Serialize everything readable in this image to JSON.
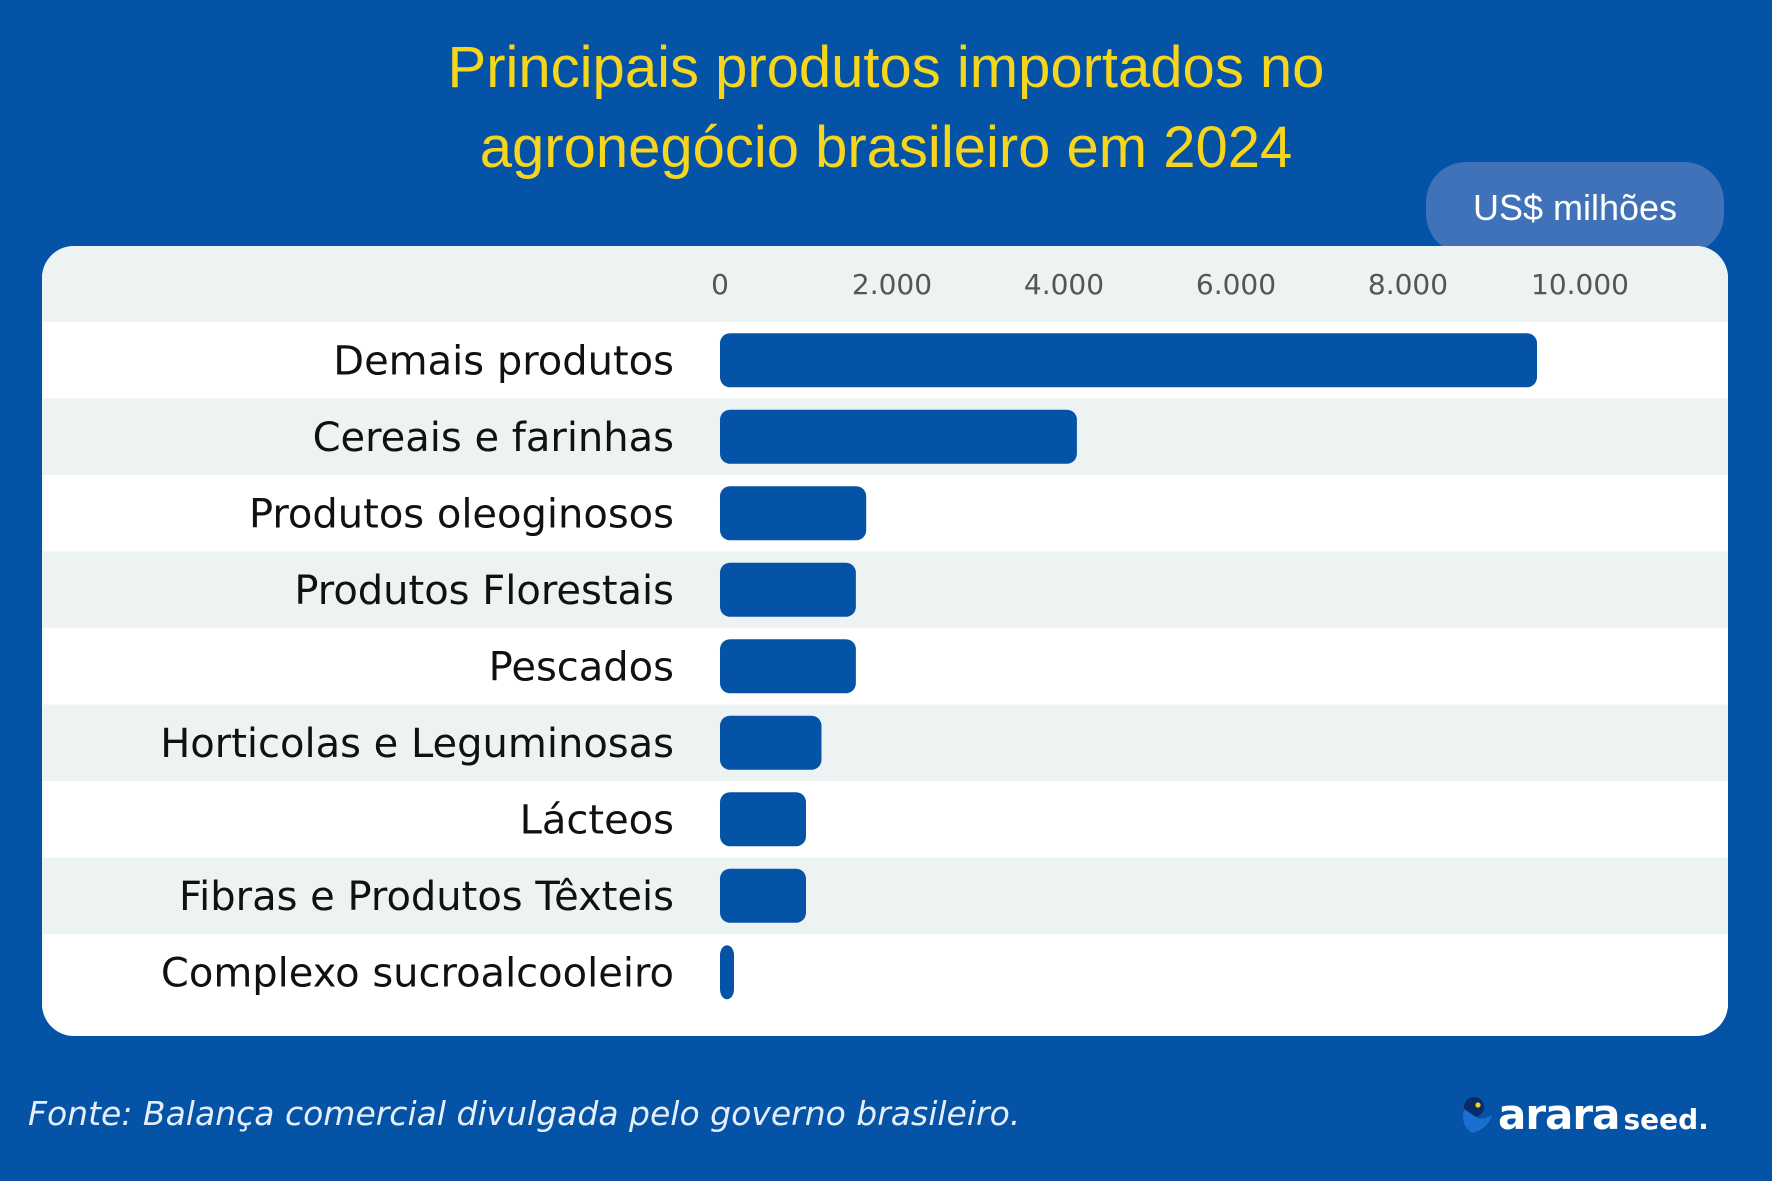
{
  "title_line1": "Principais produtos importados no",
  "title_line2": "agronegócio brasileiro em 2024",
  "unit_label": "US$ milhões",
  "source": "Fonte: Balança comercial divulgada pelo governo brasileiro.",
  "logo": {
    "main": "arara",
    "sub": "seed."
  },
  "colors": {
    "background": "#0553A6",
    "bar": "#0553A6",
    "title": "#F7D51D",
    "stripe": "#EDF2F2",
    "badge": "#3F72B8"
  },
  "chart_data": {
    "type": "bar",
    "orientation": "horizontal",
    "title": "Principais produtos importados no agronegócio brasileiro em 2024",
    "unit": "US$ milhões",
    "categories": [
      "Demais produtos",
      "Cereais e farinhas",
      "Produtos oleoginosos",
      "Produtos Florestais",
      "Pescados",
      "Horticolas e Leguminosas",
      "Lácteos",
      "Fibras e Produtos Têxteis",
      "Complexo sucroalcooleiro"
    ],
    "values": [
      9500,
      4150,
      1700,
      1580,
      1580,
      1180,
      1000,
      1000,
      120
    ],
    "xlim": [
      0,
      10000
    ],
    "ticks": [
      0,
      2000,
      4000,
      6000,
      8000,
      10000
    ],
    "tick_labels": [
      "0",
      "2.000",
      "4.000",
      "6.000",
      "8.000",
      "10.000"
    ],
    "axis_position": "top",
    "grid": false,
    "legend": "none"
  }
}
